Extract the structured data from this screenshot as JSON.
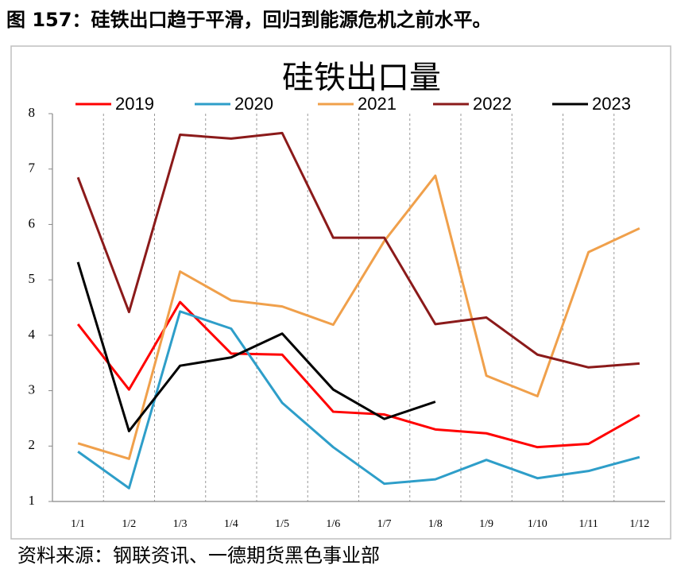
{
  "caption": "图 157：硅铁出口趋于平滑，回归到能源危机之前水平。",
  "source": "资料来源：钢联资讯、一德期货黑色事业部",
  "chart_data": {
    "type": "line",
    "title": "硅铁出口量",
    "categories": [
      "1/1",
      "1/2",
      "1/3",
      "1/4",
      "1/5",
      "1/6",
      "1/7",
      "1/8",
      "1/9",
      "1/10",
      "1/11",
      "1/12"
    ],
    "series": [
      {
        "name": "2019",
        "color": "#ff0000",
        "values": [
          4.2,
          3.02,
          4.6,
          3.67,
          3.65,
          2.62,
          2.57,
          2.3,
          2.23,
          1.98,
          2.04,
          2.56
        ]
      },
      {
        "name": "2020",
        "color": "#2e9ec9",
        "values": [
          1.9,
          1.24,
          4.43,
          4.12,
          2.78,
          1.98,
          1.32,
          1.4,
          1.75,
          1.42,
          1.55,
          1.8
        ]
      },
      {
        "name": "2021",
        "color": "#f0a04b",
        "values": [
          2.05,
          1.77,
          5.15,
          4.63,
          4.52,
          4.19,
          5.7,
          6.88,
          3.27,
          2.9,
          5.5,
          5.93
        ]
      },
      {
        "name": "2022",
        "color": "#8b1a1a",
        "values": [
          6.85,
          4.42,
          7.62,
          7.55,
          7.65,
          5.76,
          5.76,
          4.2,
          4.32,
          3.65,
          3.42,
          3.49
        ]
      },
      {
        "name": "2023",
        "color": "#000000",
        "values": [
          5.32,
          2.27,
          3.45,
          3.6,
          4.03,
          3.02,
          2.49,
          2.8,
          null,
          null,
          null,
          null
        ]
      }
    ],
    "ylim": [
      1,
      8
    ],
    "yticks": [
      1,
      2,
      3,
      4,
      5,
      6,
      7,
      8
    ],
    "grid": "x-dashed",
    "legend": "top"
  }
}
